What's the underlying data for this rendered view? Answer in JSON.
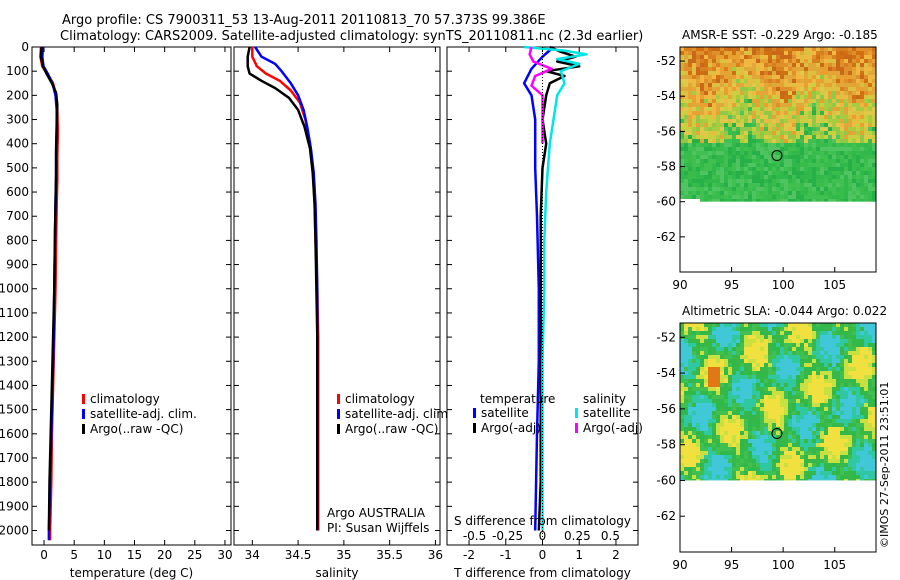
{
  "header": {
    "line1": "Argo profile: CS 7900311_53 13-Aug-2011 20110813_70 57.373S 99.386E",
    "line2": "Climatology: CARS2009. Satellite-adjusted climatology: synTS_20110811.nc (2.3d earlier)"
  },
  "footer": {
    "argo_line1": "Argo AUSTRALIA",
    "argo_line2": "PI: Susan Wijffels",
    "credit": "©IMOS 27-Sep-2011 23:51:01"
  },
  "colors": {
    "climatology": "#ff0000",
    "satellite": "#0000ff",
    "argo": "#000000",
    "sal_satellite": "#00e5e5",
    "sal_argo": "#ff00ff"
  },
  "chart_data": [
    {
      "id": "temperature",
      "type": "line",
      "xlabel": "temperature (deg C)",
      "xlim": [
        -2,
        31
      ],
      "xticks": [
        0,
        5,
        10,
        15,
        20,
        25,
        30
      ],
      "xticklabels": [
        "0",
        "5",
        "10",
        "15",
        "20",
        "25",
        "30"
      ],
      "ylim": [
        2060,
        0
      ],
      "yticks": [
        0,
        100,
        200,
        300,
        400,
        500,
        600,
        700,
        800,
        900,
        1000,
        1100,
        1200,
        1300,
        1400,
        1500,
        1600,
        1700,
        1800,
        1900,
        2000
      ],
      "legend": [
        "climatology",
        "satellite-adj. clim.",
        "Argo(..raw -QC)"
      ],
      "series": [
        {
          "name": "climatology",
          "color": "#ff0000",
          "points": [
            [
              -0.5,
              0
            ],
            [
              -0.6,
              40
            ],
            [
              -0.3,
              80
            ],
            [
              0.5,
              110
            ],
            [
              1.5,
              150
            ],
            [
              2.0,
              200
            ],
            [
              2.2,
              260
            ],
            [
              2.3,
              350
            ],
            [
              2.2,
              450
            ],
            [
              2.2,
              550
            ],
            [
              2.1,
              650
            ],
            [
              2.0,
              800
            ],
            [
              1.9,
              1000
            ],
            [
              1.7,
              1200
            ],
            [
              1.5,
              1400
            ],
            [
              1.3,
              1600
            ],
            [
              1.2,
              1800
            ],
            [
              1.0,
              2000
            ],
            [
              1.0,
              2040
            ]
          ]
        },
        {
          "name": "satellite-adj. clim.",
          "color": "#0000ff",
          "points": [
            [
              -0.2,
              0
            ],
            [
              -0.3,
              40
            ],
            [
              -0.1,
              80
            ],
            [
              0.6,
              110
            ],
            [
              1.4,
              150
            ],
            [
              1.9,
              200
            ],
            [
              2.1,
              260
            ],
            [
              2.1,
              350
            ],
            [
              2.0,
              450
            ],
            [
              2.0,
              550
            ],
            [
              1.9,
              650
            ],
            [
              1.8,
              800
            ],
            [
              1.7,
              1000
            ],
            [
              1.6,
              1200
            ],
            [
              1.4,
              1400
            ],
            [
              1.2,
              1600
            ],
            [
              1.0,
              1800
            ],
            [
              0.8,
              2000
            ],
            [
              0.8,
              2040
            ]
          ]
        },
        {
          "name": "Argo(..raw -QC)",
          "color": "#000000",
          "points": [
            [
              -0.4,
              0
            ],
            [
              -0.5,
              40
            ],
            [
              -0.2,
              80
            ],
            [
              0.4,
              110
            ],
            [
              1.3,
              150
            ],
            [
              2.0,
              190
            ],
            [
              2.2,
              240
            ],
            [
              2.1,
              320
            ],
            [
              2.0,
              420
            ],
            [
              2.0,
              520
            ],
            [
              1.9,
              650
            ],
            [
              1.8,
              800
            ],
            [
              1.7,
              1000
            ],
            [
              1.5,
              1200
            ],
            [
              1.3,
              1400
            ],
            [
              1.1,
              1600
            ],
            [
              0.9,
              1800
            ],
            [
              0.8,
              2000
            ]
          ]
        }
      ]
    },
    {
      "id": "salinity",
      "type": "line",
      "xlabel": "salinity",
      "xlim": [
        33.8,
        36.05
      ],
      "xticks": [
        34,
        34.5,
        35,
        35.5,
        36
      ],
      "xticklabels": [
        "34",
        "34.5",
        "35",
        "35.5",
        "36"
      ],
      "ylim": [
        2060,
        0
      ],
      "yticks": [
        0,
        100,
        200,
        300,
        400,
        500,
        600,
        700,
        800,
        900,
        1000,
        1100,
        1200,
        1300,
        1400,
        1500,
        1600,
        1700,
        1800,
        1900,
        2000
      ],
      "legend": [
        "climatology",
        "satellite-adj. clim.",
        "Argo(..raw -QC)"
      ],
      "series": [
        {
          "name": "climatology",
          "color": "#ff0000",
          "points": [
            [
              34.0,
              0
            ],
            [
              34.0,
              40
            ],
            [
              34.05,
              80
            ],
            [
              34.15,
              110
            ],
            [
              34.3,
              140
            ],
            [
              34.42,
              180
            ],
            [
              34.52,
              230
            ],
            [
              34.58,
              300
            ],
            [
              34.63,
              400
            ],
            [
              34.66,
              500
            ],
            [
              34.68,
              650
            ],
            [
              34.69,
              800
            ],
            [
              34.71,
              1000
            ],
            [
              34.72,
              1200
            ],
            [
              34.72,
              1400
            ],
            [
              34.72,
              1600
            ],
            [
              34.72,
              1800
            ],
            [
              34.72,
              2000
            ]
          ]
        },
        {
          "name": "satellite-adj. clim.",
          "color": "#0000ff",
          "points": [
            [
              34.03,
              0
            ],
            [
              34.1,
              40
            ],
            [
              34.25,
              70
            ],
            [
              34.32,
              100
            ],
            [
              34.42,
              150
            ],
            [
              34.5,
              200
            ],
            [
              34.56,
              260
            ],
            [
              34.6,
              330
            ],
            [
              34.64,
              420
            ],
            [
              34.67,
              520
            ],
            [
              34.69,
              650
            ],
            [
              34.7,
              800
            ],
            [
              34.71,
              1000
            ],
            [
              34.71,
              1200
            ],
            [
              34.71,
              1400
            ],
            [
              34.71,
              1600
            ],
            [
              34.71,
              1800
            ],
            [
              34.71,
              2000
            ]
          ]
        },
        {
          "name": "Argo(..raw -QC)",
          "color": "#000000",
          "points": [
            [
              33.97,
              0
            ],
            [
              33.95,
              40
            ],
            [
              33.95,
              80
            ],
            [
              33.97,
              110
            ],
            [
              34.1,
              140
            ],
            [
              34.25,
              170
            ],
            [
              34.4,
              210
            ],
            [
              34.5,
              260
            ],
            [
              34.57,
              330
            ],
            [
              34.63,
              420
            ],
            [
              34.66,
              520
            ],
            [
              34.68,
              650
            ],
            [
              34.69,
              800
            ],
            [
              34.7,
              1000
            ],
            [
              34.71,
              1200
            ],
            [
              34.71,
              1400
            ],
            [
              34.71,
              1600
            ],
            [
              34.71,
              1800
            ],
            [
              34.71,
              2000
            ]
          ]
        }
      ]
    },
    {
      "id": "difference",
      "type": "line",
      "xlabel": "T difference from climatology",
      "top_axis_label": "S difference from climatology",
      "xlim": [
        -2.6,
        2.6
      ],
      "xticks": [
        -2,
        -1,
        0,
        1,
        2
      ],
      "xticklabels": [
        "-2",
        "-1",
        "0",
        "1",
        "2"
      ],
      "top_ticklabels": [
        "-0.5",
        "-0.25",
        "0",
        "0.25",
        "0.5"
      ],
      "ylim": [
        2060,
        0
      ],
      "yticks": [
        0,
        100,
        200,
        300,
        400,
        500,
        600,
        700,
        800,
        900,
        1000,
        1100,
        1200,
        1300,
        1400,
        1500,
        1600,
        1700,
        1800,
        1900,
        2000
      ],
      "legend_groups": [
        "temperature",
        "salinity"
      ],
      "legend": [
        "satellite",
        "Argo(-adj)",
        "satellite",
        "Argo(-adj)"
      ],
      "series": [
        {
          "name": "temperature satellite",
          "color": "#0000ff",
          "points": [
            [
              0.3,
              0
            ],
            [
              0.0,
              40
            ],
            [
              -0.3,
              90
            ],
            [
              -0.5,
              150
            ],
            [
              -0.3,
              200
            ],
            [
              -0.2,
              300
            ],
            [
              -0.2,
              500
            ],
            [
              -0.15,
              700
            ],
            [
              -0.1,
              1000
            ],
            [
              -0.1,
              1300
            ],
            [
              -0.15,
              1600
            ],
            [
              -0.2,
              2000
            ]
          ]
        },
        {
          "name": "temperature Argo(-adj)",
          "color": "#000000",
          "points": [
            [
              0.2,
              0
            ],
            [
              0.5,
              20
            ],
            [
              0.9,
              40
            ],
            [
              0.4,
              60
            ],
            [
              1.0,
              80
            ],
            [
              0.1,
              100
            ],
            [
              0.6,
              120
            ],
            [
              0.2,
              150
            ],
            [
              0.1,
              200
            ],
            [
              0.0,
              300
            ],
            [
              0.1,
              400
            ],
            [
              0.0,
              500
            ],
            [
              -0.05,
              700
            ],
            [
              -0.05,
              1000
            ],
            [
              -0.05,
              1300
            ],
            [
              -0.05,
              1600
            ],
            [
              -0.05,
              1800
            ],
            [
              -0.1,
              2000
            ]
          ]
        },
        {
          "name": "salinity satellite",
          "color": "#00e5e5",
          "points": [
            [
              -0.5,
              0
            ],
            [
              0.6,
              15
            ],
            [
              1.2,
              30
            ],
            [
              0.4,
              50
            ],
            [
              1.0,
              70
            ],
            [
              0.5,
              100
            ],
            [
              0.6,
              150
            ],
            [
              0.4,
              200
            ],
            [
              0.3,
              300
            ],
            [
              0.2,
              400
            ],
            [
              0.1,
              600
            ],
            [
              0.05,
              800
            ],
            [
              0.05,
              1000
            ],
            [
              0.0,
              1300
            ],
            [
              0.0,
              1600
            ],
            [
              0.0,
              2000
            ]
          ]
        },
        {
          "name": "salinity Argo(-adj)",
          "color": "#ff00ff",
          "points": [
            [
              -0.3,
              0
            ],
            [
              -0.35,
              30
            ],
            [
              -0.25,
              60
            ],
            [
              0.25,
              90
            ],
            [
              -0.2,
              120
            ],
            [
              -0.3,
              160
            ],
            [
              0.0,
              200
            ],
            [
              0.0,
              300
            ],
            [
              0.0,
              400
            ]
          ]
        },
        {
          "name": "zero line",
          "color": "#000000",
          "dotted": true,
          "points": [
            [
              0,
              0
            ],
            [
              0,
              2060
            ]
          ]
        }
      ]
    },
    {
      "id": "sst-map",
      "type": "heatmap",
      "title": "AMSR-E SST: -0.229 Argo: -0.185",
      "xlim": [
        90,
        109
      ],
      "ylim": [
        -64,
        -51.2
      ],
      "xticks": [
        90,
        95,
        100,
        105
      ],
      "yticks": [
        -52,
        -54,
        -56,
        -58,
        -60,
        -62
      ],
      "marker": [
        99.4,
        -57.373
      ],
      "valid_lat_min": -60
    },
    {
      "id": "sla-map",
      "type": "heatmap",
      "title": "Altimetric SLA: -0.044 Argo: 0.022",
      "xlim": [
        90,
        109
      ],
      "ylim": [
        -64,
        -51.2
      ],
      "xticks": [
        90,
        95,
        100,
        105
      ],
      "yticks": [
        -52,
        -54,
        -56,
        -58,
        -60,
        -62
      ],
      "marker": [
        99.4,
        -57.373
      ],
      "valid_lat_min": -60
    }
  ]
}
